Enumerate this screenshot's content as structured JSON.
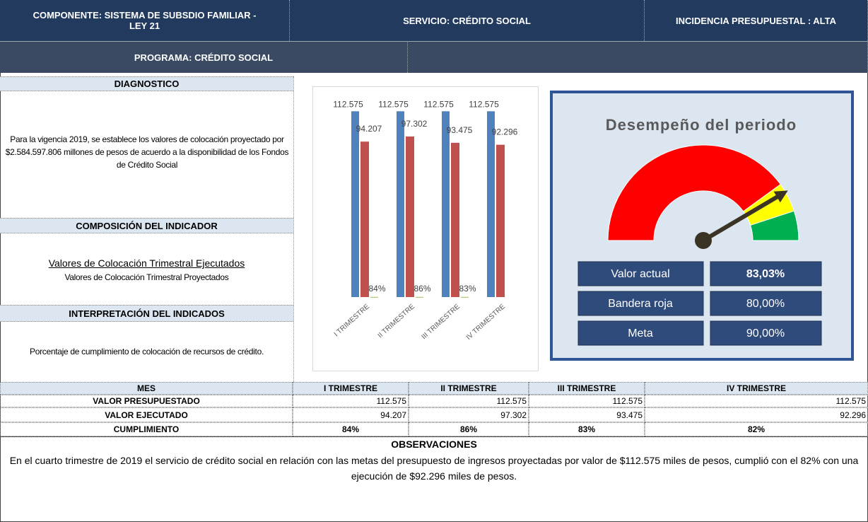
{
  "header": {
    "componente": "COMPONENTE: SISTEMA DE SUBSDIO FAMILIAR - LEY 21",
    "servicio": "SERVICIO: CRÉDITO SOCIAL",
    "incidencia": "INCIDENCIA PRESUPUESTAL : ALTA",
    "programa": "PROGRAMA: CRÉDITO SOCIAL"
  },
  "diagnostico": {
    "title": "DIAGNOSTICO",
    "text": "Para la vigencia 2019, se establece los valores de colocación proyectado  por $2.584.597.806  millones de pesos de acuerdo a la disponibilidad de los Fondos de Crédito Social"
  },
  "composicion": {
    "title": "COMPOSICIÓN DEL INDICADOR",
    "numerator": "Valores de Colocación Trimestral Ejecutados",
    "denominator": "Valores de Colocación Trimestral Proyectados"
  },
  "interpretacion": {
    "title": "INTERPRETACIÓN DEL INDICADOS",
    "text": "Porcentaje de cumplimiento de colocación de recursos de crédito."
  },
  "chart_data": {
    "type": "bar",
    "categories": [
      "I TRIMESTRE",
      "II TRIMESTRE",
      "III TRIMESTRE",
      "IV TRIMESTRE"
    ],
    "series": [
      {
        "color": "#4f81bd",
        "values": [
          112575,
          112575,
          112575,
          112575
        ],
        "value_labels": [
          "112.575",
          "112.575",
          "112.575",
          "112.575"
        ]
      },
      {
        "color": "#c0504d",
        "values": [
          94207,
          97302,
          93475,
          92296
        ],
        "value_labels": [
          "94.207",
          "97.302",
          "93.475",
          "92.296"
        ]
      },
      {
        "color": "#9bbb59",
        "values": [
          84,
          86,
          83,
          null
        ],
        "value_labels": [
          "84%",
          "86%",
          "83%",
          null
        ]
      }
    ],
    "ylim": [
      0,
      120000
    ]
  },
  "gauge": {
    "title": "Desempeño del periodo",
    "range": [
      0,
      100
    ],
    "band_colors": [
      "#ff0000",
      "#ffff00",
      "#00b050"
    ],
    "rows": [
      {
        "label": "Valor actual",
        "value": 83.03,
        "value_label": "83,03%"
      },
      {
        "label": "Bandera roja",
        "value": 80,
        "value_label": "80,00%"
      },
      {
        "label": "Meta",
        "value": 90,
        "value_label": "90,00%"
      }
    ]
  },
  "table": {
    "header": [
      "MES",
      "I TRIMESTRE",
      "II TRIMESTRE",
      "III TRIMESTRE",
      "IV TRIMESTRE"
    ],
    "rows": [
      [
        "VALOR PRESUPUESTADO",
        "112.575",
        "112.575",
        "112.575",
        "112.575"
      ],
      [
        "VALOR EJECUTADO",
        "94.207",
        "97.302",
        "93.475",
        "92.296"
      ],
      [
        "CUMPLIMIENTO",
        "84%",
        "86%",
        "83%",
        "82%"
      ]
    ]
  },
  "observaciones": {
    "title": "OBSERVACIONES",
    "text": "En el cuarto trimestre de 2019 el servicio de crédito social en relación con las metas del presupuesto de ingresos proyectadas por valor de $112.575 miles de pesos, cumplió con el 82% con una ejecución de $92.296 miles de pesos."
  }
}
